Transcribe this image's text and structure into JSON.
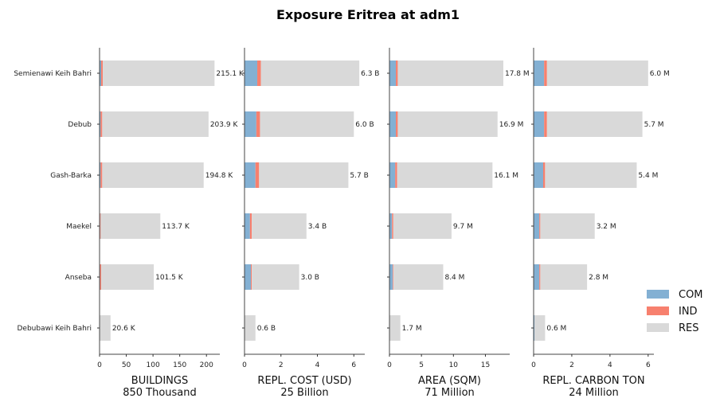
{
  "colors": {
    "COM": "#83b0d3",
    "IND": "#f7806e",
    "RES": "#d9d9d9"
  },
  "chart_data": {
    "type": "bar",
    "orientation": "horizontal",
    "stacked": true,
    "title": "Exposure Eritrea at adm1",
    "categories": [
      "Semienawi Keih Bahri",
      "Debub",
      "Gash-Barka",
      "Maekel",
      "Anseba",
      "Debubawi Keih Bahri"
    ],
    "legend": {
      "placement": "right",
      "entries": [
        "COM",
        "IND",
        "RES"
      ]
    },
    "grid": false,
    "panels": [
      {
        "xlabel": "BUILDINGS",
        "subtitle": "850 Thousand",
        "xlim": [
          0,
          225
        ],
        "xticks": [
          "0",
          "50",
          "100",
          "150",
          "200"
        ],
        "tick_values": [
          0,
          50,
          100,
          150,
          200
        ],
        "series": [
          {
            "name": "COM",
            "values": [
              3,
              2,
              2,
              1,
              1,
              0
            ]
          },
          {
            "name": "IND",
            "values": [
              3,
              3,
              3,
              1,
              2,
              0
            ]
          },
          {
            "name": "RES",
            "values": [
              209.1,
              198.9,
              189.8,
              111.7,
              98.5,
              20.6
            ]
          }
        ],
        "labels": [
          "215.1 K",
          "203.9 K",
          "194.8 K",
          "113.7 K",
          "101.5 K",
          "20.6 K"
        ]
      },
      {
        "xlabel": "REPL. COST (USD)",
        "subtitle": "25 Billion",
        "xlim": [
          0,
          6.6
        ],
        "xticks": [
          "0",
          "2",
          "4",
          "6"
        ],
        "tick_values": [
          0,
          2,
          4,
          6
        ],
        "series": [
          {
            "name": "COM",
            "values": [
              0.7,
              0.65,
              0.6,
              0.3,
              0.35,
              0
            ]
          },
          {
            "name": "IND",
            "values": [
              0.2,
              0.2,
              0.2,
              0.1,
              0.05,
              0
            ]
          },
          {
            "name": "RES",
            "values": [
              5.4,
              5.15,
              4.9,
              3.0,
              2.6,
              0.6
            ]
          }
        ],
        "labels": [
          "6.3 B",
          "6.0 B",
          "5.7 B",
          "3.4 B",
          "3.0 B",
          "0.6 B"
        ]
      },
      {
        "xlabel": "AREA (SQM)",
        "subtitle": "71 Million",
        "xlim": [
          0,
          18.8
        ],
        "xticks": [
          "0",
          "5",
          "10",
          "15"
        ],
        "tick_values": [
          0,
          5,
          10,
          15
        ],
        "series": [
          {
            "name": "COM",
            "values": [
              1.0,
              1.0,
              0.9,
              0.4,
              0.5,
              0
            ]
          },
          {
            "name": "IND",
            "values": [
              0.3,
              0.3,
              0.3,
              0.2,
              0.1,
              0
            ]
          },
          {
            "name": "RES",
            "values": [
              16.5,
              15.6,
              14.9,
              9.1,
              7.8,
              1.7
            ]
          }
        ],
        "labels": [
          "17.8 M",
          "16.9 M",
          "16.1 M",
          "9.7 M",
          "8.4 M",
          "1.7 M"
        ]
      },
      {
        "xlabel": "REPL. CARBON TON",
        "subtitle": "24 Million",
        "xlim": [
          0,
          6.3
        ],
        "xticks": [
          "0",
          "2",
          "4",
          "6"
        ],
        "tick_values": [
          0,
          2,
          4,
          6
        ],
        "series": [
          {
            "name": "COM",
            "values": [
              0.55,
              0.55,
              0.5,
              0.3,
              0.3,
              0.05
            ]
          },
          {
            "name": "IND",
            "values": [
              0.15,
              0.15,
              0.1,
              0.05,
              0.05,
              0
            ]
          },
          {
            "name": "RES",
            "values": [
              5.3,
              5.0,
              4.8,
              2.85,
              2.45,
              0.55
            ]
          }
        ],
        "labels": [
          "6.0 M",
          "5.7 M",
          "5.4 M",
          "3.2 M",
          "2.8 M",
          "0.6 M"
        ]
      }
    ]
  }
}
